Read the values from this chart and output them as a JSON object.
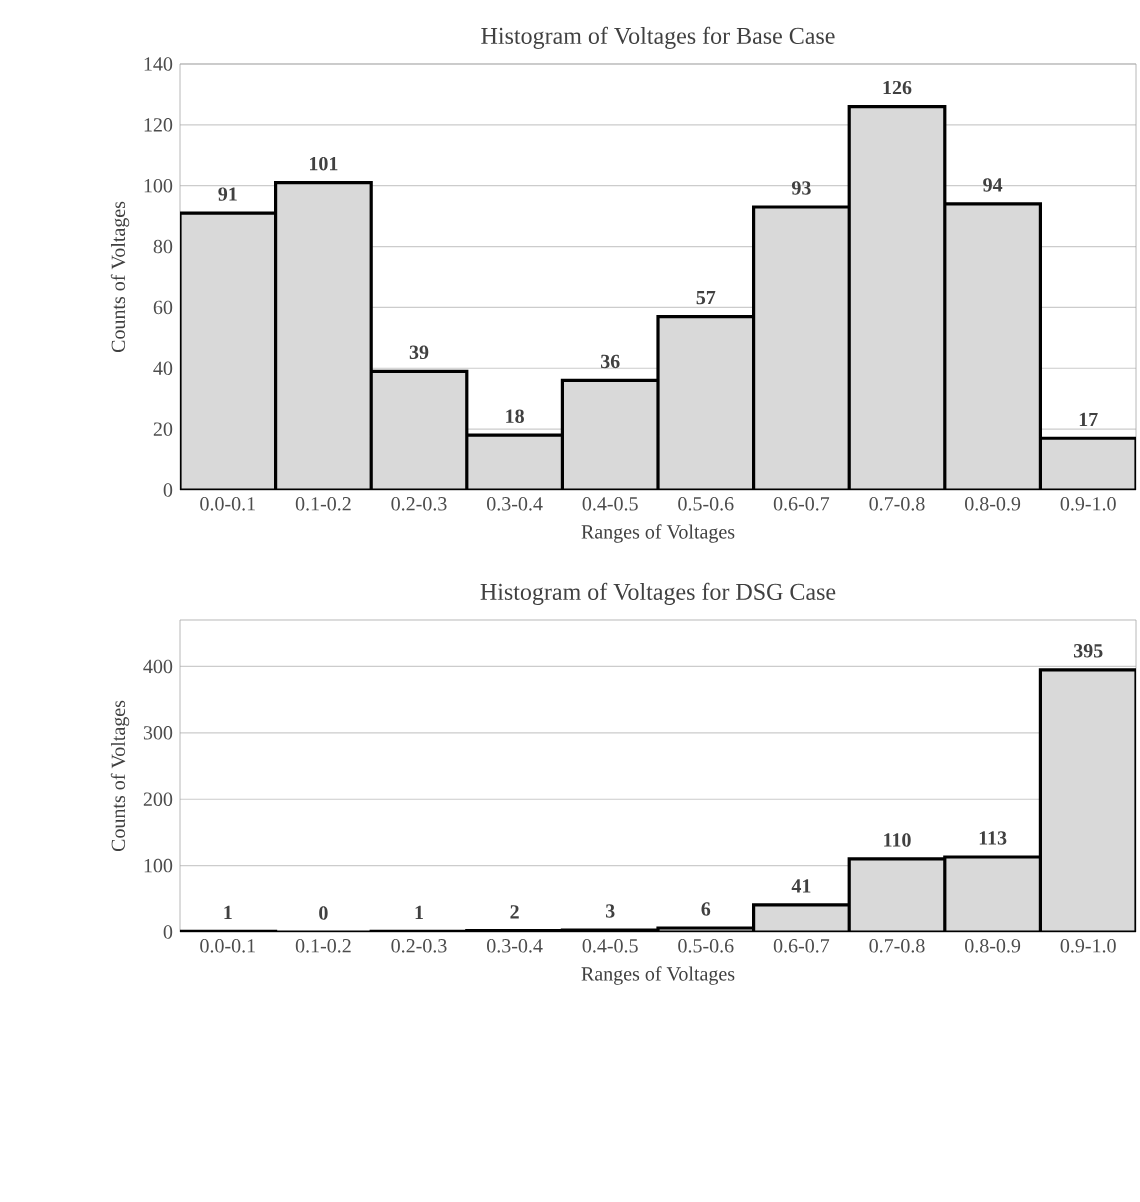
{
  "chart_data": [
    {
      "type": "bar",
      "title": "Histogram of Voltages for Base Case",
      "xlabel": "Ranges of Voltages",
      "ylabel": "Counts of Voltages",
      "categories": [
        "0.0-0.1",
        "0.1-0.2",
        "0.2-0.3",
        "0.3-0.4",
        "0.4-0.5",
        "0.5-0.6",
        "0.6-0.7",
        "0.7-0.8",
        "0.8-0.9",
        "0.9-1.0"
      ],
      "values": [
        91,
        101,
        39,
        18,
        36,
        57,
        93,
        126,
        94,
        17
      ],
      "color": "#d9d9d9",
      "ylim": [
        0,
        140
      ],
      "yticks": [
        0,
        20,
        40,
        60,
        80,
        100,
        120,
        140
      ],
      "grid": "y",
      "data_labels": true
    },
    {
      "type": "bar",
      "title": "Histogram of Voltages for DSG Case",
      "xlabel": "Ranges of Voltages",
      "ylabel": "Counts of Voltages",
      "categories": [
        "0.0-0.1",
        "0.1-0.2",
        "0.2-0.3",
        "0.3-0.4",
        "0.4-0.5",
        "0.5-0.6",
        "0.6-0.7",
        "0.7-0.8",
        "0.8-0.9",
        "0.9-1.0"
      ],
      "values": [
        1,
        0,
        1,
        2,
        3,
        6,
        41,
        110,
        113,
        395
      ],
      "color": "#d9d9d9",
      "ylim": [
        0,
        470
      ],
      "yticks": [
        0,
        100,
        200,
        300,
        400
      ],
      "grid": "y",
      "data_labels": true
    }
  ]
}
